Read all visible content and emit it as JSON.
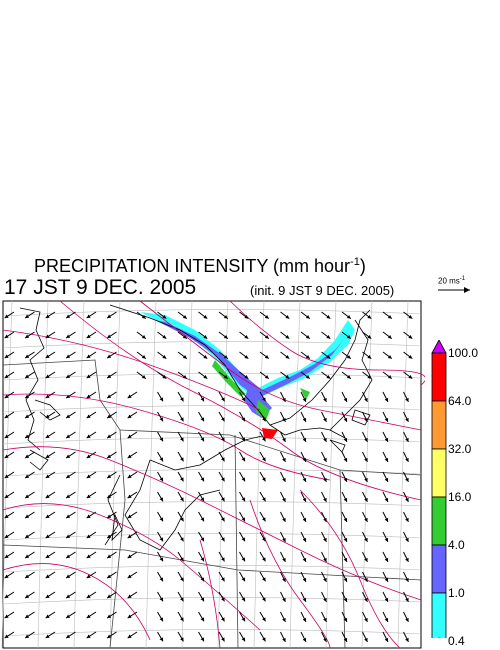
{
  "header": {
    "title_main": "PRECIPITATION INTENSITY (mm hour",
    "title_sup": "-1",
    "title_end": ")",
    "datetime": "17 JST 9 DEC. 2005",
    "init": "(init. 9 JST 9 DEC. 2005)"
  },
  "vector_reference": {
    "label": "20 ms",
    "label_sup": "-1"
  },
  "legend": {
    "levels": [
      {
        "label": "100.0",
        "color": "#cc00ff"
      },
      {
        "label": "64.0",
        "color": "#ff0000"
      },
      {
        "label": "32.0",
        "color": "#ff9933"
      },
      {
        "label": "16.0",
        "color": "#ffff66"
      },
      {
        "label": "4.0",
        "color": "#33cc33"
      },
      {
        "label": "1.0",
        "color": "#6666ff"
      },
      {
        "label": "0.4",
        "color": "#33ffff"
      }
    ],
    "below_color": "#ffffff"
  },
  "map": {
    "wind_direction": "north-westerly winds over sea, northerly over land",
    "precip_band": "band along north-west coast"
  }
}
